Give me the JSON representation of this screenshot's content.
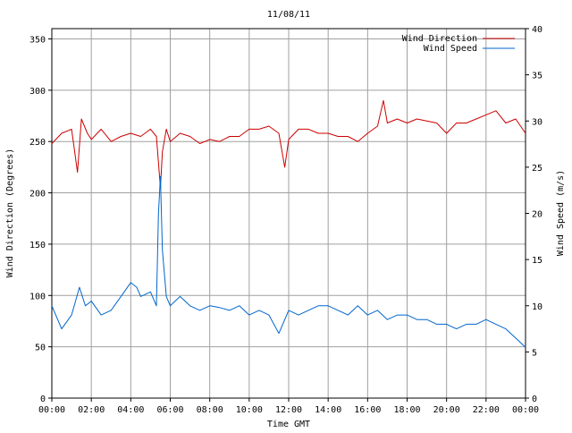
{
  "chart_data": {
    "type": "line",
    "title": "11/08/11",
    "xlabel": "Time GMT",
    "ylabel_left": "Wind Direction (Degrees)",
    "ylabel_right": "Wind Speed (m/s)",
    "x_ticks": [
      "00:00",
      "02:00",
      "04:00",
      "06:00",
      "08:00",
      "10:00",
      "12:00",
      "14:00",
      "16:00",
      "18:00",
      "20:00",
      "22:00",
      "00:00"
    ],
    "x_range_hours": [
      0,
      24
    ],
    "y_left_range": [
      0,
      360
    ],
    "y_left_ticks": [
      0,
      50,
      100,
      150,
      200,
      250,
      300,
      350
    ],
    "y_right_range": [
      0,
      40
    ],
    "y_right_ticks": [
      0,
      5,
      10,
      15,
      20,
      25,
      30,
      35,
      40
    ],
    "grid": true,
    "legend_position": "top-right",
    "series": [
      {
        "name": "Wind Direction",
        "axis": "left",
        "color": "#cc0000",
        "x_hours": [
          0,
          0.5,
          1,
          1.3,
          1.5,
          1.8,
          2,
          2.5,
          3,
          3.5,
          4,
          4.5,
          5,
          5.3,
          5.5,
          5.6,
          5.8,
          6,
          6.5,
          7,
          7.5,
          8,
          8.5,
          9,
          9.5,
          10,
          10.5,
          11,
          11.5,
          11.8,
          12,
          12.5,
          13,
          13.5,
          14,
          14.5,
          15,
          15.5,
          16,
          16.5,
          16.8,
          17,
          17.5,
          18,
          18.5,
          19,
          19.5,
          20,
          20.5,
          21,
          21.5,
          22,
          22.5,
          23,
          23.5,
          24
        ],
        "values": [
          248,
          258,
          262,
          220,
          272,
          258,
          252,
          262,
          250,
          255,
          258,
          255,
          262,
          255,
          205,
          240,
          262,
          250,
          258,
          255,
          248,
          252,
          250,
          255,
          255,
          262,
          262,
          265,
          258,
          225,
          252,
          262,
          262,
          258,
          258,
          255,
          255,
          250,
          258,
          265,
          290,
          268,
          272,
          268,
          272,
          270,
          268,
          258,
          268,
          268,
          272,
          276,
          280,
          268,
          272,
          258
        ]
      },
      {
        "name": "Wind Speed",
        "axis": "right",
        "color": "#0066cc",
        "x_hours": [
          0,
          0.5,
          1,
          1.4,
          1.7,
          2,
          2.5,
          3,
          3.5,
          4,
          4.3,
          4.5,
          5,
          5.3,
          5.4,
          5.5,
          5.6,
          5.8,
          6,
          6.5,
          7,
          7.5,
          8,
          8.5,
          9,
          9.5,
          10,
          10.5,
          11,
          11.5,
          12,
          12.5,
          13,
          13.5,
          14,
          14.5,
          15,
          15.5,
          16,
          16.5,
          17,
          17.5,
          18,
          18.5,
          19,
          19.5,
          20,
          20.5,
          21,
          21.5,
          22,
          22.5,
          23,
          23.5,
          24
        ],
        "values": [
          10,
          7.5,
          9,
          12,
          10,
          10.5,
          9,
          9.5,
          11,
          12.5,
          12,
          11,
          11.5,
          10,
          20,
          24,
          16,
          11,
          10,
          11,
          10,
          9.5,
          10,
          9.8,
          9.5,
          10,
          9,
          9.5,
          9,
          7,
          9.5,
          9,
          9.5,
          10,
          10,
          9.5,
          9,
          10,
          9,
          9.5,
          8.5,
          9,
          9,
          8.5,
          8.5,
          8,
          8,
          7.5,
          8,
          8,
          8.5,
          8,
          7.5,
          6.5,
          5.5
        ]
      }
    ]
  }
}
